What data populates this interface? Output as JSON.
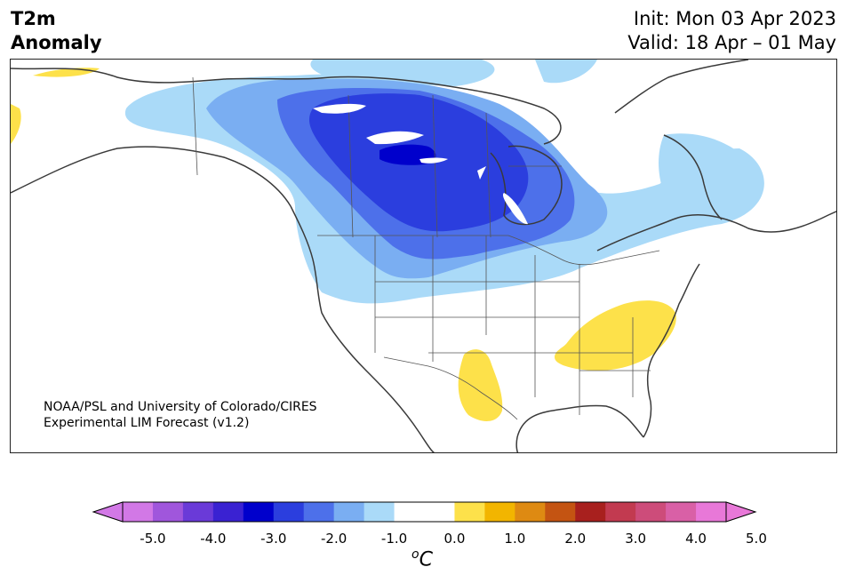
{
  "header": {
    "title_line1": "T2m",
    "title_line2": "Anomaly",
    "init": "Init: Mon 03 Apr 2023",
    "valid": "Valid: 18 Apr – 01 May"
  },
  "credit": {
    "line1": "NOAA/PSL and University of Colorado/CIRES",
    "line2": "Experimental LIM Forecast (v1.2)"
  },
  "colorbar": {
    "unit_base": "C",
    "unit_sup": "o",
    "ticks": [
      "-5.0",
      "-4.0",
      "-3.0",
      "-2.0",
      "-1.0",
      "0.0",
      "1.0",
      "2.0",
      "3.0",
      "4.0",
      "5.0"
    ],
    "colors": [
      "#d278e6",
      "#a056dc",
      "#6a3ad8",
      "#3a22d2",
      "#0000cc",
      "#2b3ede",
      "#4d70ea",
      "#7aaef2",
      "#aadaf8",
      "#ffffff",
      "#ffffff",
      "#fde14a",
      "#f2b500",
      "#de8a12",
      "#c45412",
      "#a8201e",
      "#c23a50",
      "#cd4c7a",
      "#d960a6",
      "#e878d8"
    ]
  },
  "map": {
    "region": "North America",
    "anomaly_colors": {
      "light_blue": "#aadaf8",
      "mid_blue": "#7aaef2",
      "blue": "#4d70ea",
      "deep_blue": "#2b3ede",
      "darkest_blue": "#0000cc",
      "yellow": "#fde14a"
    }
  }
}
